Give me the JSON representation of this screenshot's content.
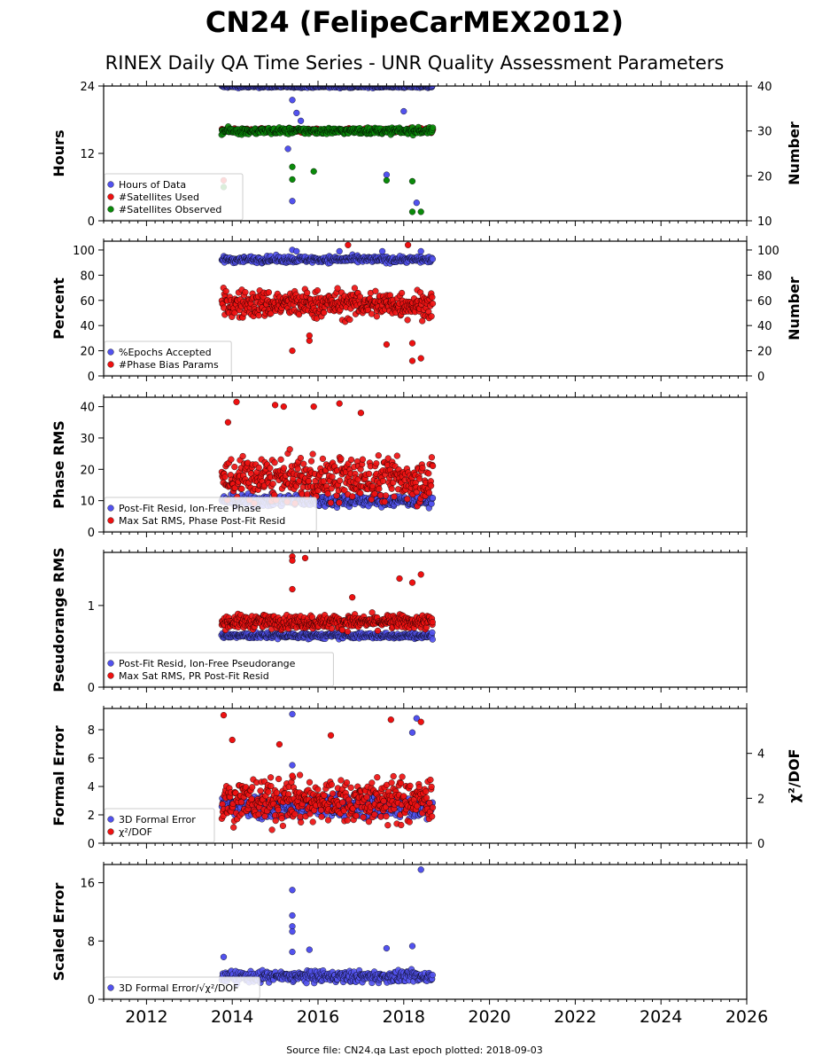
{
  "figure": {
    "title": "CN24 (FelipeCarMEX2012)",
    "subtitle": "RINEX Daily QA Time Series - UNR Quality Assessment Parameters",
    "footer": "Source file: CN24.qa Last epoch plotted: 2018-09-03"
  },
  "chart_data": {
    "type": "scatter",
    "x_axis": {
      "range": [
        2011.0,
        2026.0
      ],
      "ticks": [
        2012,
        2014,
        2016,
        2018,
        2020,
        2022,
        2024,
        2026
      ],
      "data_span": [
        2013.75,
        2018.67
      ]
    },
    "colors": {
      "blue": "#5252ee",
      "red": "#ee1111",
      "green": "#0a8a0a"
    },
    "panels": [
      {
        "ylabel": "Hours",
        "ylim": [
          0,
          24
        ],
        "yticks": [
          0,
          12,
          24
        ],
        "right_ylabel": "Number",
        "right_ylim": [
          10,
          40
        ],
        "right_yticks": [
          10,
          20,
          30,
          40
        ],
        "legend": [
          "Hours of Data",
          "#Satellites Used",
          "#Satellites Observed"
        ],
        "series": [
          {
            "name": "Hours of Data",
            "color": "blue",
            "axis": "left",
            "base": 23.9,
            "noise": 0.15,
            "outliers": [
              [
                2015.4,
                21.5
              ],
              [
                2015.5,
                19.2
              ],
              [
                2015.6,
                17.8
              ],
              [
                2015.4,
                3.5
              ],
              [
                2017.6,
                8.2
              ],
              [
                2018.3,
                3.2
              ],
              [
                2018.0,
                19.5
              ],
              [
                2015.3,
                12.8
              ]
            ]
          },
          {
            "name": "#Satellites Used",
            "color": "red",
            "axis": "right",
            "base": 30.1,
            "noise": 0.3,
            "outliers": [
              [
                2013.8,
                19.0
              ],
              [
                2018.4,
                30.6
              ]
            ]
          },
          {
            "name": "#Satellites Observed",
            "color": "green",
            "axis": "right",
            "base": 30.0,
            "noise": 0.5,
            "outliers": [
              [
                2015.4,
                22.0
              ],
              [
                2015.4,
                19.2
              ],
              [
                2015.9,
                21.0
              ],
              [
                2017.6,
                19.0
              ],
              [
                2018.2,
                18.8
              ],
              [
                2018.2,
                12.0
              ],
              [
                2018.4,
                12.0
              ],
              [
                2013.8,
                17.5
              ]
            ]
          }
        ]
      },
      {
        "ylabel": "Percent",
        "ylim": [
          0,
          107
        ],
        "yticks": [
          0,
          20,
          40,
          60,
          80,
          100
        ],
        "right_ylabel": "Number",
        "right_ylim": [
          0,
          107
        ],
        "right_yticks": [
          0,
          20,
          40,
          60,
          80,
          100
        ],
        "legend": [
          "%Epochs Accepted",
          "#Phase Bias Params"
        ],
        "series": [
          {
            "name": "%Epochs Accepted",
            "color": "blue",
            "axis": "left",
            "base": 92.5,
            "noise": 1.8,
            "outliers": [
              [
                2015.4,
                100
              ],
              [
                2015.5,
                99
              ],
              [
                2016.5,
                99
              ],
              [
                2017.5,
                99
              ],
              [
                2018.4,
                99
              ]
            ]
          },
          {
            "name": "#Phase Bias Params",
            "color": "red",
            "axis": "right",
            "base": 57,
            "noise": 8,
            "outliers": [
              [
                2015.4,
                20
              ],
              [
                2015.8,
                28
              ],
              [
                2015.8,
                32
              ],
              [
                2017.6,
                25
              ],
              [
                2018.2,
                12
              ],
              [
                2018.4,
                14
              ],
              [
                2018.2,
                26
              ],
              [
                2016.7,
                104
              ],
              [
                2018.1,
                104
              ]
            ]
          }
        ]
      },
      {
        "ylabel": "Phase RMS",
        "ylim": [
          0,
          43
        ],
        "yticks": [
          0,
          10,
          20,
          30,
          40
        ],
        "legend": [
          "Post-Fit Resid, Ion-Free Phase",
          "Max Sat RMS, Phase Post-Fit Resid"
        ],
        "series": [
          {
            "name": "Post-Fit Resid, Ion-Free Phase",
            "color": "blue",
            "axis": "left",
            "base": 10,
            "noise": 1.3,
            "outliers": []
          },
          {
            "name": "Max Sat RMS, Phase Post-Fit Resid",
            "color": "red",
            "axis": "left",
            "base": 17,
            "noise": 5,
            "outliers": [
              [
                2014.1,
                41.5
              ],
              [
                2015.0,
                40.5
              ],
              [
                2015.2,
                40.0
              ],
              [
                2015.9,
                40.0
              ],
              [
                2016.5,
                41.0
              ],
              [
                2017.0,
                38.0
              ],
              [
                2013.9,
                35.0
              ]
            ]
          }
        ]
      },
      {
        "ylabel": "Pseudorange RMS",
        "ylim": [
          0,
          1.65
        ],
        "yticks": [
          0,
          1
        ],
        "legend": [
          "Post-Fit Resid, Ion-Free Pseudorange",
          "Max Sat RMS, PR Post-Fit Resid"
        ],
        "series": [
          {
            "name": "Post-Fit Resid, Ion-Free Pseudorange",
            "color": "blue",
            "axis": "left",
            "base": 0.63,
            "noise": 0.025,
            "outliers": []
          },
          {
            "name": "Max Sat RMS, PR Post-Fit Resid",
            "color": "red",
            "axis": "left",
            "base": 0.8,
            "noise": 0.06,
            "outliers": [
              [
                2015.4,
                1.6
              ],
              [
                2015.4,
                1.55
              ],
              [
                2015.7,
                1.58
              ],
              [
                2015.4,
                1.2
              ],
              [
                2017.9,
                1.33
              ],
              [
                2018.2,
                1.28
              ],
              [
                2018.4,
                1.38
              ],
              [
                2016.8,
                1.1
              ]
            ]
          }
        ]
      },
      {
        "ylabel": "Formal Error",
        "ylim": [
          0,
          9.5
        ],
        "yticks": [
          0,
          2,
          4,
          6,
          8
        ],
        "right_ylabel": "χ²/DOF",
        "right_ylim": [
          0,
          6
        ],
        "right_yticks": [
          0,
          2,
          4
        ],
        "legend": [
          "3D Formal Error",
          "χ²/DOF"
        ],
        "series": [
          {
            "name": "3D Formal Error",
            "color": "blue",
            "axis": "left",
            "base": 2.6,
            "noise": 0.6,
            "outliers": [
              [
                2015.4,
                9.1
              ],
              [
                2015.4,
                5.5
              ],
              [
                2018.3,
                8.8
              ],
              [
                2018.2,
                7.8
              ]
            ]
          },
          {
            "name": "χ²/DOF",
            "color": "red",
            "axis": "right",
            "base": 1.9,
            "noise": 0.7,
            "outliers": [
              [
                2013.8,
                5.7
              ],
              [
                2014.0,
                4.6
              ],
              [
                2015.1,
                4.4
              ],
              [
                2016.3,
                4.8
              ],
              [
                2017.7,
                5.5
              ],
              [
                2018.4,
                5.4
              ],
              [
                2015.4,
                3.0
              ]
            ]
          }
        ]
      },
      {
        "ylabel": "Scaled Error",
        "ylim": [
          0,
          18.5
        ],
        "yticks": [
          0,
          8,
          16
        ],
        "legend": [
          "3D Formal Error/√χ²/DOF"
        ],
        "series": [
          {
            "name": "3D Formal Error/√χ²/DOF",
            "color": "blue",
            "axis": "left",
            "base": 3.1,
            "noise": 0.55,
            "outliers": [
              [
                2018.4,
                17.8
              ],
              [
                2015.4,
                15.0
              ],
              [
                2015.4,
                11.5
              ],
              [
                2015.4,
                10.0
              ],
              [
                2015.4,
                9.3
              ],
              [
                2018.2,
                7.3
              ],
              [
                2017.6,
                7.0
              ],
              [
                2013.8,
                5.8
              ],
              [
                2015.4,
                6.5
              ],
              [
                2015.8,
                6.8
              ]
            ]
          }
        ]
      }
    ]
  }
}
